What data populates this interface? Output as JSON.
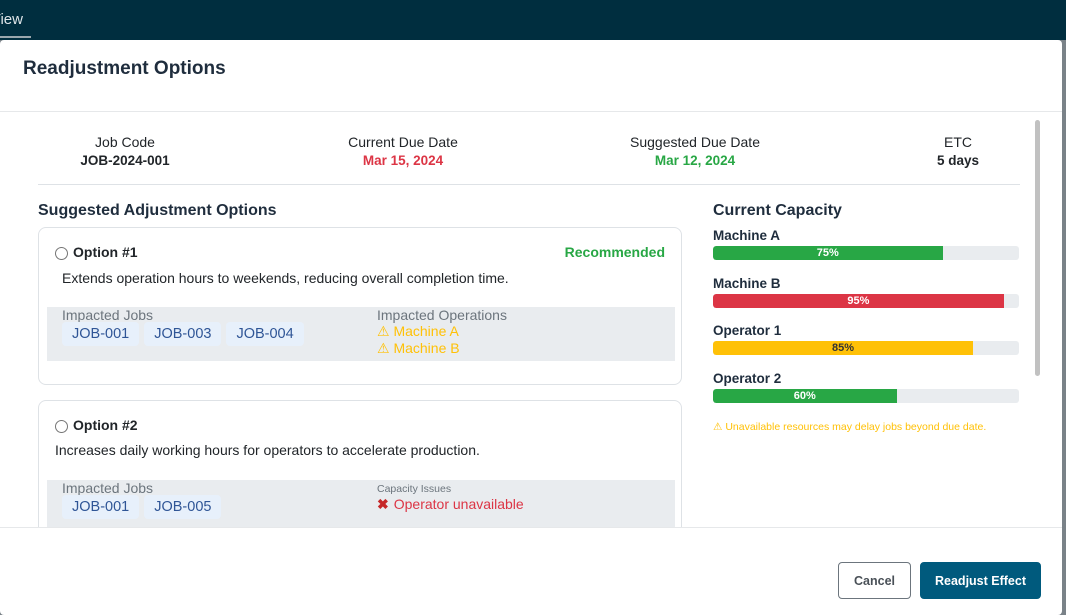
{
  "topbar": {
    "tab": "n View"
  },
  "modal": {
    "title": "Readjustment Options"
  },
  "summary": [
    {
      "label": "Job Code",
      "value": "JOB-2024-001"
    },
    {
      "label": "Current Due Date",
      "value": "Mar 15, 2024"
    },
    {
      "label": "Suggested Due Date",
      "value": "Mar 12, 2024"
    },
    {
      "label": "ETC",
      "value": "5 days"
    }
  ],
  "options_title": "Suggested Adjustment Options",
  "options": [
    {
      "title": "Option #1",
      "badge": "Recommended",
      "desc": "Extends operation hours to weekends, reducing overall completion time.",
      "jobs_label": "Impacted Jobs",
      "jobs": [
        "JOB-001",
        "JOB-003",
        "JOB-004"
      ],
      "ops_label": "Impacted Operations",
      "ops": [
        "⚠ Machine A",
        "⚠ Machine B"
      ]
    },
    {
      "title": "Option #2",
      "desc": "Increases daily working hours for operators to accelerate production.",
      "jobs_label": "Impacted Jobs",
      "jobs": [
        "JOB-001",
        "JOB-005"
      ],
      "issues_label": "Capacity Issues",
      "issue": "Operator unavailable"
    }
  ],
  "capacity": {
    "title": "Current Capacity",
    "items": [
      {
        "name": "Machine A",
        "pct": 75,
        "label": "75%",
        "color": "#28a745"
      },
      {
        "name": "Machine B",
        "pct": 95,
        "label": "95%",
        "color": "#dc3545"
      },
      {
        "name": "Operator 1",
        "pct": 85,
        "label": "85%",
        "color": "#ffc107"
      },
      {
        "name": "Operator 2",
        "pct": 60,
        "label": "60%",
        "color": "#28a745"
      }
    ],
    "note": "⚠ Unavailable resources may delay jobs beyond due date."
  },
  "footer": {
    "cancel": "Cancel",
    "confirm": "Readjust Effect"
  }
}
